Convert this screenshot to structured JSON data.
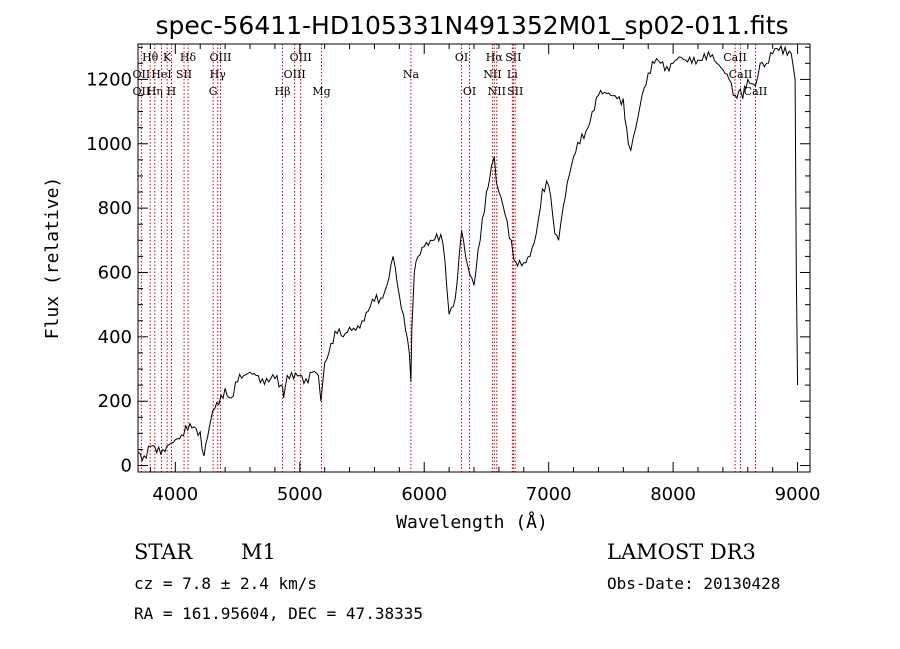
{
  "chart_data": {
    "type": "line",
    "title": "spec-56411-HD105331N491352M01_sp02-011.fits",
    "xlabel": "Wavelength (Å)",
    "ylabel": "Flux (relative)",
    "xlim": [
      3700,
      9100
    ],
    "ylim": [
      -20,
      1310
    ],
    "xticks": [
      4000,
      5000,
      6000,
      7000,
      8000,
      9000
    ],
    "yticks": [
      0,
      200,
      400,
      600,
      800,
      1000,
      1200
    ],
    "spectrum": {
      "name": "flux",
      "x": [
        3700,
        3750,
        3800,
        3850,
        3900,
        3950,
        4000,
        4050,
        4100,
        4150,
        4200,
        4230,
        4260,
        4300,
        4350,
        4400,
        4450,
        4500,
        4550,
        4600,
        4650,
        4700,
        4750,
        4800,
        4850,
        4862,
        4870,
        4900,
        4950,
        5000,
        5050,
        5100,
        5150,
        5170,
        5180,
        5200,
        5250,
        5300,
        5350,
        5400,
        5450,
        5500,
        5550,
        5600,
        5650,
        5700,
        5750,
        5800,
        5850,
        5880,
        5893,
        5900,
        5920,
        5950,
        6000,
        6050,
        6100,
        6150,
        6200,
        6250,
        6300,
        6350,
        6400,
        6450,
        6500,
        6540,
        6563,
        6580,
        6600,
        6650,
        6700,
        6720,
        6750,
        6800,
        6850,
        6900,
        6950,
        7000,
        7050,
        7080,
        7100,
        7150,
        7200,
        7250,
        7300,
        7350,
        7400,
        7450,
        7500,
        7550,
        7600,
        7640,
        7660,
        7680,
        7700,
        7750,
        7800,
        7850,
        7900,
        7950,
        8000,
        8050,
        8100,
        8150,
        8200,
        8250,
        8300,
        8350,
        8400,
        8450,
        8500,
        8540,
        8560,
        8600,
        8662,
        8700,
        8750,
        8800,
        8850,
        8900,
        8950,
        8980,
        8990,
        9000
      ],
      "values": [
        40,
        30,
        60,
        40,
        50,
        65,
        80,
        95,
        110,
        120,
        105,
        30,
        90,
        170,
        190,
        240,
        210,
        260,
        280,
        290,
        280,
        270,
        260,
        270,
        250,
        245,
        210,
        280,
        270,
        280,
        270,
        290,
        280,
        200,
        240,
        320,
        380,
        410,
        400,
        430,
        420,
        450,
        480,
        510,
        520,
        560,
        650,
        530,
        420,
        350,
        260,
        420,
        600,
        650,
        680,
        700,
        720,
        690,
        470,
        520,
        730,
        620,
        560,
        700,
        850,
        930,
        960,
        880,
        850,
        780,
        700,
        640,
        620,
        630,
        650,
        720,
        860,
        870,
        720,
        700,
        760,
        880,
        960,
        1000,
        1040,
        1100,
        1150,
        1160,
        1150,
        1140,
        1140,
        1000,
        980,
        1020,
        1050,
        1150,
        1220,
        1250,
        1250,
        1240,
        1250,
        1270,
        1260,
        1250,
        1260,
        1280,
        1270,
        1250,
        1230,
        1200,
        1150,
        1170,
        1140,
        1200,
        1180,
        1250,
        1250,
        1280,
        1290,
        1300,
        1280,
        1200,
        600,
        250
      ]
    },
    "line_markers": [
      {
        "label": "Hθ",
        "x": 3798,
        "row": 0
      },
      {
        "label": "OII",
        "x": 3727,
        "row": 1
      },
      {
        "label": "OII",
        "x": 3727,
        "row": 2
      },
      {
        "label": "Hη",
        "x": 3835,
        "row": 2
      },
      {
        "label": "HeI",
        "x": 3889,
        "row": 1
      },
      {
        "label": "K",
        "x": 3934,
        "row": 0
      },
      {
        "label": "H",
        "x": 3969,
        "row": 2
      },
      {
        "label": "SII",
        "x": 4070,
        "row": 1
      },
      {
        "label": "Hδ",
        "x": 4102,
        "row": 0
      },
      {
        "label": "OIII",
        "x": 4363,
        "row": 0
      },
      {
        "label": "Hγ",
        "x": 4341,
        "row": 1
      },
      {
        "label": "G",
        "x": 4304,
        "row": 2
      },
      {
        "label": "Hβ",
        "x": 4861,
        "row": 2
      },
      {
        "label": "OIII",
        "x": 5007,
        "row": 0
      },
      {
        "label": "OIII",
        "x": 4959,
        "row": 1
      },
      {
        "label": "Mg",
        "x": 5175,
        "row": 2
      },
      {
        "label": "Na",
        "x": 5893,
        "row": 1
      },
      {
        "label": "OI",
        "x": 6300,
        "row": 0
      },
      {
        "label": "OI",
        "x": 6364,
        "row": 2
      },
      {
        "label": "Hα",
        "x": 6563,
        "row": 0
      },
      {
        "label": "SII",
        "x": 6716,
        "row": 0
      },
      {
        "label": "NII",
        "x": 6548,
        "row": 1
      },
      {
        "label": "Li",
        "x": 6708,
        "row": 1
      },
      {
        "label": "NII",
        "x": 6583,
        "row": 2
      },
      {
        "label": "SII",
        "x": 6731,
        "row": 2
      },
      {
        "label": "CaII",
        "x": 8498,
        "row": 0
      },
      {
        "label": "CaII",
        "x": 8542,
        "row": 1
      },
      {
        "label": "CaII",
        "x": 8662,
        "row": 2
      }
    ],
    "marker_color": "#cc0000"
  },
  "info": {
    "object_class": "STAR",
    "subclass": "M1",
    "survey": "LAMOST DR3",
    "redshift": "cz = 7.8 ± 2.4 km/s",
    "obs_date": "Obs-Date: 20130428",
    "coords": "RA = 161.95604, DEC =  47.38335"
  }
}
